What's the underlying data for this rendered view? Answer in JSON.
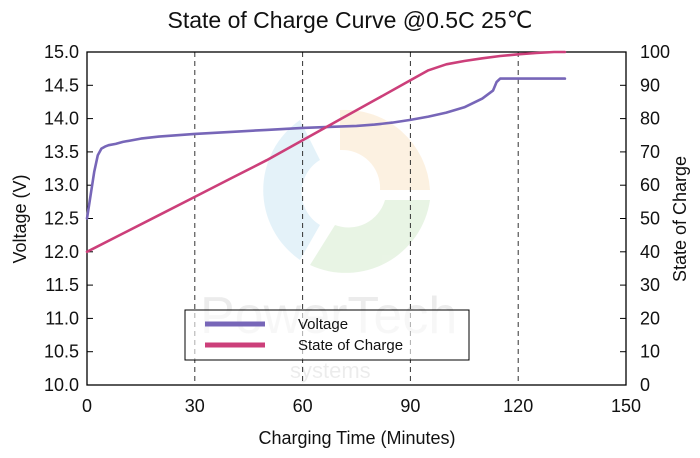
{
  "chart_data": {
    "type": "line",
    "title": "State of Charge Curve @0.5C 25℃",
    "xlabel": "Charging Time (Minutes)",
    "ylabel": "Voltage (V)",
    "y2label": "State of Charge",
    "xlim": [
      0,
      150
    ],
    "ylim": [
      10.0,
      15.0
    ],
    "y2lim": [
      0,
      100
    ],
    "xticks": [
      "0",
      "30",
      "60",
      "90",
      "120",
      "150"
    ],
    "yticks": [
      "10.0",
      "10.5",
      "11.0",
      "11.5",
      "12.0",
      "12.5",
      "13.0",
      "13.5",
      "14.0",
      "14.5",
      "15.0"
    ],
    "y2ticks": [
      "0",
      "10",
      "20",
      "30",
      "40",
      "50",
      "60",
      "70",
      "80",
      "90",
      "100"
    ],
    "grid": "vertical dashed",
    "legend_position": "lower-center",
    "watermark": "PowerTech systems",
    "series": [
      {
        "name": "Voltage",
        "axis": "left",
        "color": "#7766b8",
        "x": [
          0,
          1,
          2,
          3,
          4,
          5,
          6,
          8,
          10,
          15,
          20,
          30,
          40,
          50,
          60,
          70,
          75,
          80,
          85,
          90,
          95,
          100,
          105,
          110,
          113,
          114,
          115,
          116,
          120,
          125,
          130,
          133
        ],
        "y": [
          12.5,
          12.85,
          13.2,
          13.45,
          13.55,
          13.58,
          13.6,
          13.62,
          13.65,
          13.7,
          13.73,
          13.77,
          13.8,
          13.83,
          13.86,
          13.88,
          13.89,
          13.91,
          13.94,
          13.98,
          14.03,
          14.09,
          14.17,
          14.3,
          14.42,
          14.55,
          14.6,
          14.6,
          14.6,
          14.6,
          14.6,
          14.6
        ]
      },
      {
        "name": "State of Charge",
        "axis": "right",
        "color": "#cc3f7a",
        "x": [
          0,
          10,
          20,
          30,
          40,
          50,
          60,
          70,
          80,
          90,
          95,
          100,
          105,
          110,
          115,
          120,
          125,
          130,
          133
        ],
        "y": [
          40,
          45.5,
          51,
          56.5,
          62,
          67.5,
          73.5,
          79.5,
          85.5,
          91.5,
          94.5,
          96.3,
          97.3,
          98.1,
          98.8,
          99.3,
          99.7,
          100,
          100
        ]
      }
    ]
  }
}
